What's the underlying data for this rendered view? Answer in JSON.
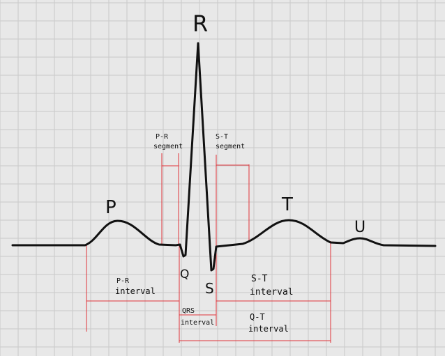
{
  "colors": {
    "background": "#e8e8e8",
    "grid": "#c9c9c9",
    "trace": "#111111",
    "marker": "#e0343a"
  },
  "waves": {
    "p": "P",
    "q": "Q",
    "r": "R",
    "s": "S",
    "t": "T",
    "u": "U"
  },
  "segments": {
    "pr_line1": "P-R",
    "pr_line2": "segment",
    "st_line1": "S-T",
    "st_line2": "segment"
  },
  "intervals": {
    "pr_line1": "P-R",
    "pr_line2": "interval",
    "qrs_line1": "QRS",
    "qrs_line2": "interval",
    "st_line1": "S-T",
    "st_line2": "interval",
    "qt_line1": "Q-T",
    "qt_line2": "interval"
  }
}
